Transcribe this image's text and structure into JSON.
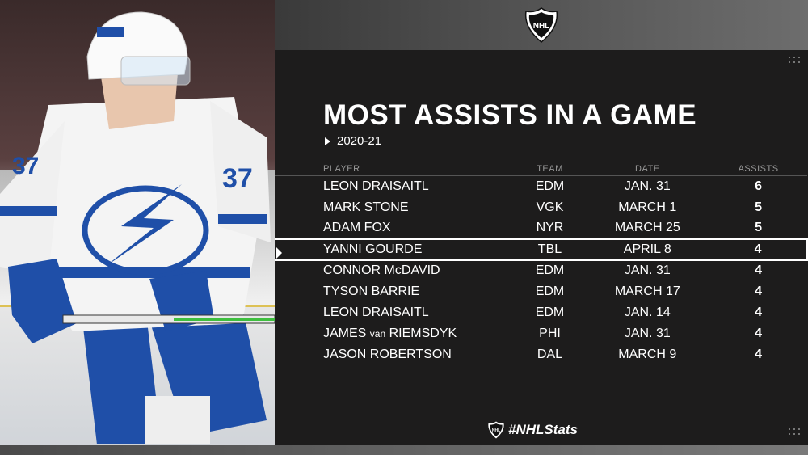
{
  "header": {
    "logo_icon": "nhl-shield-icon"
  },
  "title": "MOST ASSISTS IN A GAME",
  "season": "2020-21",
  "table": {
    "columns": [
      "PLAYER",
      "TEAM",
      "DATE",
      "ASSISTS"
    ],
    "rows": [
      {
        "player": "LEON DRAISAITL",
        "team": "EDM",
        "date": "JAN. 31",
        "assists": "6"
      },
      {
        "player": "MARK STONE",
        "team": "VGK",
        "date": "MARCH 1",
        "assists": "5"
      },
      {
        "player": "ADAM FOX",
        "team": "NYR",
        "date": "MARCH 25",
        "assists": "5"
      },
      {
        "player": "YANNI GOURDE",
        "team": "TBL",
        "date": "APRIL 8",
        "assists": "4"
      },
      {
        "player": "CONNOR McDAVID",
        "team": "EDM",
        "date": "JAN. 31",
        "assists": "4"
      },
      {
        "player": "TYSON BARRIE",
        "team": "EDM",
        "date": "MARCH 17",
        "assists": "4"
      },
      {
        "player": "LEON DRAISAITL",
        "team": "EDM",
        "date": "JAN. 14",
        "assists": "4"
      },
      {
        "player_first": "JAMES",
        "player_mid": "van",
        "player_last": "RIEMSDYK",
        "team": "PHI",
        "date": "JAN. 31",
        "assists": "4"
      },
      {
        "player": "JASON ROBERTSON",
        "team": "DAL",
        "date": "MARCH 9",
        "assists": "4"
      }
    ]
  },
  "footer": {
    "hashtag": "#NHLStats",
    "logo_icon": "nhl-shield-icon"
  },
  "colors": {
    "lightning_blue": "#1f4fa8",
    "background": "#1d1c1c",
    "header_gray": "#9a9a9a"
  }
}
